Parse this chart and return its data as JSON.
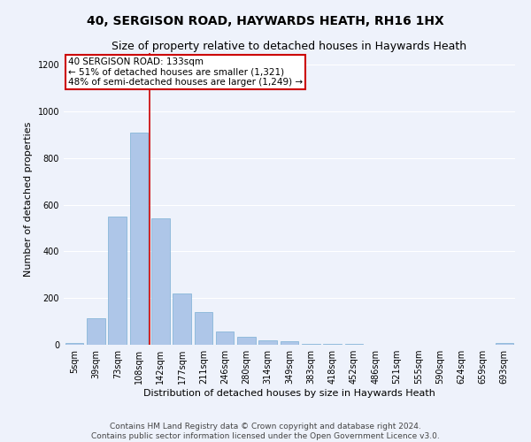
{
  "title": "40, SERGISON ROAD, HAYWARDS HEATH, RH16 1HX",
  "subtitle": "Size of property relative to detached houses in Haywards Heath",
  "xlabel": "Distribution of detached houses by size in Haywards Heath",
  "ylabel": "Number of detached properties",
  "bar_color": "#aec6e8",
  "bar_edge_color": "#7aafd4",
  "background_color": "#eef2fb",
  "grid_color": "#ffffff",
  "categories": [
    "5sqm",
    "39sqm",
    "73sqm",
    "108sqm",
    "142sqm",
    "177sqm",
    "211sqm",
    "246sqm",
    "280sqm",
    "314sqm",
    "349sqm",
    "383sqm",
    "418sqm",
    "452sqm",
    "486sqm",
    "521sqm",
    "555sqm",
    "590sqm",
    "624sqm",
    "659sqm",
    "693sqm"
  ],
  "values": [
    8,
    115,
    550,
    910,
    540,
    220,
    140,
    57,
    35,
    20,
    14,
    2,
    5,
    2,
    1,
    1,
    0,
    0,
    0,
    0,
    8
  ],
  "ylim": [
    0,
    1250
  ],
  "yticks": [
    0,
    200,
    400,
    600,
    800,
    1000,
    1200
  ],
  "property_line_idx": 3.5,
  "property_line_label": "40 SERGISON ROAD: 133sqm",
  "annotation_line1": "← 51% of detached houses are smaller (1,321)",
  "annotation_line2": "48% of semi-detached houses are larger (1,249) →",
  "annotation_box_color": "#ffffff",
  "annotation_box_edge_color": "#cc0000",
  "footer_line1": "Contains HM Land Registry data © Crown copyright and database right 2024.",
  "footer_line2": "Contains public sector information licensed under the Open Government Licence v3.0.",
  "title_fontsize": 10,
  "subtitle_fontsize": 9,
  "axis_label_fontsize": 8,
  "tick_fontsize": 7,
  "annotation_fontsize": 7.5,
  "footer_fontsize": 6.5
}
